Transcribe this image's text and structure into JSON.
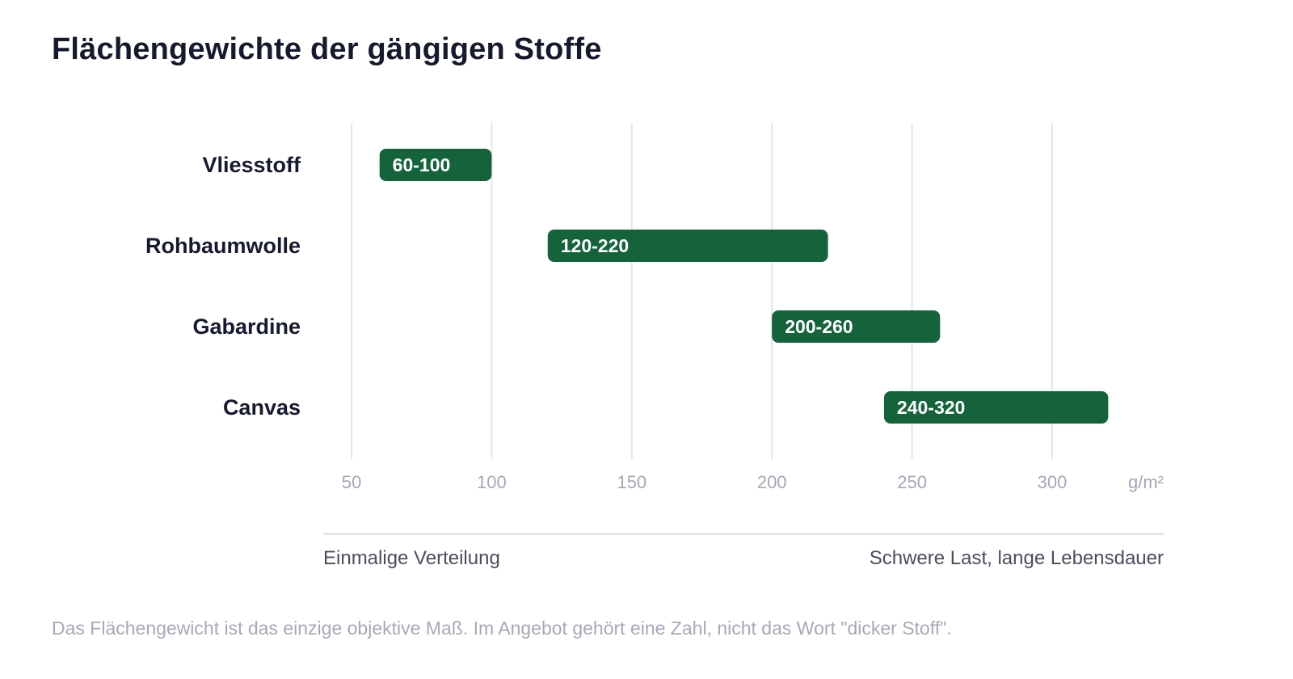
{
  "title": "Flächengewichte der gängigen Stoffe",
  "chart_data": {
    "type": "bar",
    "orientation": "horizontal-range",
    "categories": [
      "Vliesstoff",
      "Rohbaumwolle",
      "Gabardine",
      "Canvas"
    ],
    "ranges": [
      [
        60,
        100
      ],
      [
        120,
        220
      ],
      [
        200,
        260
      ],
      [
        240,
        320
      ]
    ],
    "data_labels": [
      "60-100",
      "120-220",
      "200-260",
      "240-320"
    ],
    "x_ticks": [
      "50",
      "100",
      "150",
      "200",
      "250",
      "300"
    ],
    "x_unit": "g/m²",
    "xlim": [
      50,
      320
    ],
    "grid": true,
    "bar_color": "#14633a"
  },
  "scale": {
    "left": "Einmalige Verteilung",
    "right": "Schwere Last, lange Lebensdauer"
  },
  "footnote": "Das Flächengewicht ist das einzige objektive Maß. Im Angebot gehört eine Zahl, nicht das Wort \"dicker Stoff\"."
}
